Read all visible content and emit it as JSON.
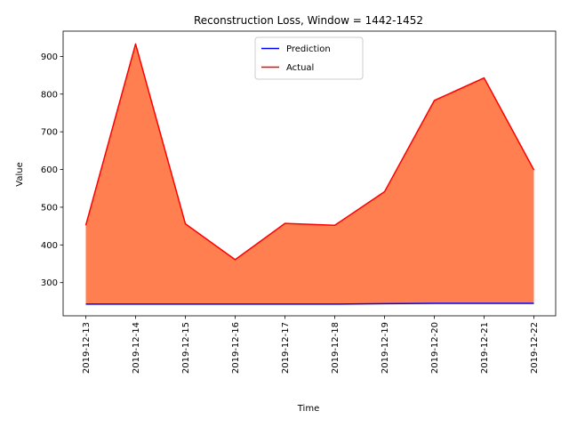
{
  "chart_data": {
    "type": "area",
    "title": "Reconstruction Loss, Window = 1442-1452",
    "xlabel": "Time",
    "ylabel": "Value",
    "x": [
      "2019-12-13",
      "2019-12-14",
      "2019-12-15",
      "2019-12-16",
      "2019-12-17",
      "2019-12-18",
      "2019-12-19",
      "2019-12-20",
      "2019-12-21",
      "2019-12-22"
    ],
    "ylim": [
      212,
      967
    ],
    "yticks": [
      300,
      400,
      500,
      600,
      700,
      800,
      900
    ],
    "series": [
      {
        "name": "Prediction",
        "color": "#0000ff",
        "values": [
          243,
          243,
          243,
          243,
          243,
          243,
          244,
          245,
          245,
          245
        ]
      },
      {
        "name": "Actual",
        "color": "#ff0000",
        "values": [
          452,
          933,
          456,
          361,
          457,
          452,
          541,
          783,
          843,
          599
        ]
      }
    ],
    "fill_color": "#ff7f50",
    "grid": false,
    "legend_position": "upper-center"
  }
}
